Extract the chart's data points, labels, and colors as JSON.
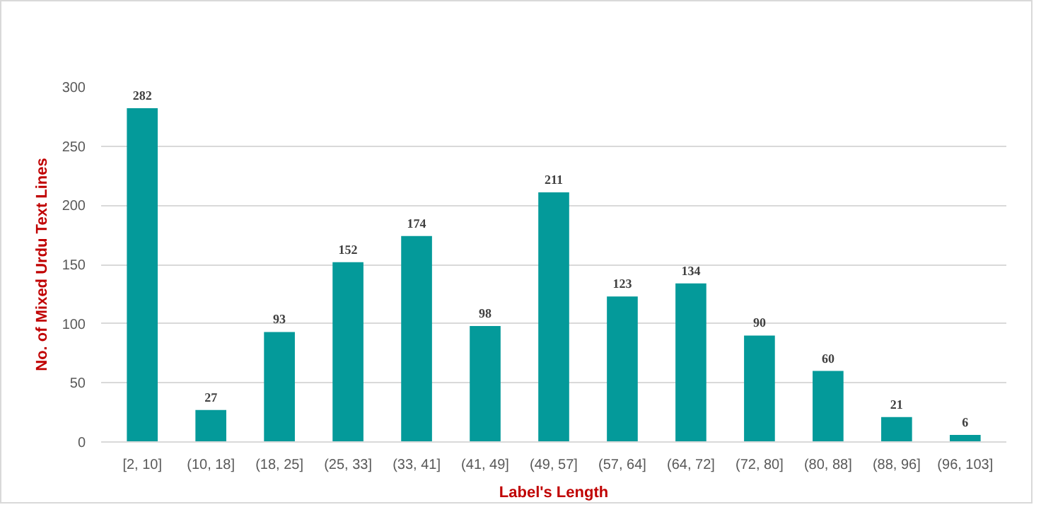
{
  "chart_data": {
    "type": "bar",
    "xlabel": "Label's Length",
    "ylabel": "No. of Mixed Urdu Text Lines",
    "categories": [
      "[2, 10]",
      "(10, 18]",
      "(18, 25]",
      "(25, 33]",
      "(33, 41]",
      "(41, 49]",
      "(49, 57]",
      "(57, 64]",
      "(64, 72]",
      "(72, 80]",
      "(80, 88]",
      "(88, 96]",
      "(96, 103]"
    ],
    "values": [
      282,
      27,
      93,
      152,
      174,
      98,
      211,
      123,
      134,
      90,
      60,
      21,
      6
    ],
    "color": "#049a9a",
    "ylim": [
      0,
      300
    ],
    "yticks": [
      0,
      50,
      100,
      150,
      200,
      250,
      300
    ],
    "grid": "y",
    "data_labels": true
  }
}
